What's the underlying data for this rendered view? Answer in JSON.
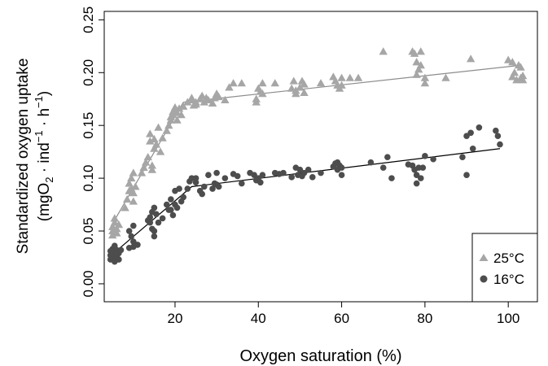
{
  "chart_data": {
    "type": "scatter",
    "xlabel": "Oxygen saturation (%)",
    "ylabel_line1": "Standardized oxygen uptake",
    "ylabel_line2": {
      "open": "(mgO",
      "sub": "2",
      "mid1": " · ind",
      "sup1": "−1",
      "mid2": " · h",
      "sup2": "−1",
      "close": ")"
    },
    "xlim": [
      3,
      107
    ],
    "ylim": [
      -0.017,
      0.258
    ],
    "x_ticks": [
      20,
      40,
      60,
      80,
      100
    ],
    "x_tick_labels": [
      "20",
      "40",
      "60",
      "80",
      "100"
    ],
    "y_ticks": [
      0.0,
      0.05,
      0.1,
      0.15,
      0.2,
      0.25
    ],
    "y_tick_labels": [
      "0.00",
      "0.05",
      "0.10",
      "0.15",
      "0.20",
      "0.25"
    ],
    "legend_position": "bottom-right",
    "series": [
      {
        "name": "25°C",
        "marker": "triangle",
        "color": "#a6a6a6",
        "points": [
          [
            5,
            0.046
          ],
          [
            5,
            0.05
          ],
          [
            5,
            0.054
          ],
          [
            5.5,
            0.058
          ],
          [
            5.5,
            0.062
          ],
          [
            6,
            0.052
          ],
          [
            6,
            0.048
          ],
          [
            6.5,
            0.056
          ],
          [
            8,
            0.072
          ],
          [
            8.5,
            0.08
          ],
          [
            9,
            0.088
          ],
          [
            9,
            0.095
          ],
          [
            9.5,
            0.1
          ],
          [
            9.5,
            0.09
          ],
          [
            10,
            0.078
          ],
          [
            10,
            0.086
          ],
          [
            10,
            0.105
          ],
          [
            10.5,
            0.092
          ],
          [
            12,
            0.105
          ],
          [
            12.5,
            0.11
          ],
          [
            13,
            0.115
          ],
          [
            13.5,
            0.12
          ],
          [
            14,
            0.135
          ],
          [
            14,
            0.142
          ],
          [
            14.5,
            0.108
          ],
          [
            14.5,
            0.112
          ],
          [
            15,
            0.128
          ],
          [
            15,
            0.137
          ],
          [
            15.5,
            0.132
          ],
          [
            16,
            0.148
          ],
          [
            16.5,
            0.125
          ],
          [
            17,
            0.138
          ],
          [
            18,
            0.145
          ],
          [
            18.5,
            0.15
          ],
          [
            19,
            0.155
          ],
          [
            19,
            0.158
          ],
          [
            19.5,
            0.16
          ],
          [
            19.5,
            0.163
          ],
          [
            20,
            0.165
          ],
          [
            20,
            0.167
          ],
          [
            20.5,
            0.162
          ],
          [
            20.5,
            0.155
          ],
          [
            21,
            0.166
          ],
          [
            21.5,
            0.16
          ],
          [
            22,
            0.168
          ],
          [
            23,
            0.172
          ],
          [
            24,
            0.174
          ],
          [
            24,
            0.176
          ],
          [
            24.5,
            0.169
          ],
          [
            25,
            0.172
          ],
          [
            25,
            0.17
          ],
          [
            26,
            0.175
          ],
          [
            26.5,
            0.178
          ],
          [
            27,
            0.172
          ],
          [
            27.5,
            0.176
          ],
          [
            28,
            0.174
          ],
          [
            29,
            0.171
          ],
          [
            29.5,
            0.176
          ],
          [
            30,
            0.18
          ],
          [
            30.5,
            0.177
          ],
          [
            32,
            0.174
          ],
          [
            33,
            0.186
          ],
          [
            34,
            0.19
          ],
          [
            36,
            0.19
          ],
          [
            39.5,
            0.175
          ],
          [
            39.5,
            0.172
          ],
          [
            40,
            0.185
          ],
          [
            40.5,
            0.182
          ],
          [
            41,
            0.19
          ],
          [
            41,
            0.18
          ],
          [
            44,
            0.19
          ],
          [
            48,
            0.185
          ],
          [
            48.5,
            0.192
          ],
          [
            49,
            0.18
          ],
          [
            49,
            0.183
          ],
          [
            50,
            0.186
          ],
          [
            50.5,
            0.192
          ],
          [
            51,
            0.189
          ],
          [
            51,
            0.181
          ],
          [
            55,
            0.19
          ],
          [
            58,
            0.196
          ],
          [
            58.5,
            0.192
          ],
          [
            59,
            0.188
          ],
          [
            59.5,
            0.185
          ],
          [
            60,
            0.195
          ],
          [
            60,
            0.188
          ],
          [
            62,
            0.195
          ],
          [
            64,
            0.195
          ],
          [
            70,
            0.22
          ],
          [
            77,
            0.22
          ],
          [
            77.5,
            0.218
          ],
          [
            78,
            0.21
          ],
          [
            78,
            0.198
          ],
          [
            78.5,
            0.203
          ],
          [
            79,
            0.22
          ],
          [
            79,
            0.207
          ],
          [
            80,
            0.195
          ],
          [
            80,
            0.19
          ],
          [
            85,
            0.195
          ],
          [
            91,
            0.213
          ],
          [
            100,
            0.212
          ],
          [
            101,
            0.21
          ],
          [
            101,
            0.196
          ],
          [
            101.5,
            0.2
          ],
          [
            102,
            0.193
          ],
          [
            102.5,
            0.207
          ],
          [
            103,
            0.205
          ],
          [
            103,
            0.195
          ],
          [
            103.5,
            0.197
          ],
          [
            103.5,
            0.193
          ]
        ],
        "fit": [
          [
            5,
            0.057
          ],
          [
            22,
            0.172
          ],
          [
            103,
            0.207
          ]
        ]
      },
      {
        "name": "16°C",
        "marker": "circle",
        "color": "#4d4d4d",
        "points": [
          [
            4.5,
            0.023
          ],
          [
            4.5,
            0.027
          ],
          [
            4.5,
            0.031
          ],
          [
            5,
            0.025
          ],
          [
            5,
            0.033
          ],
          [
            5,
            0.029
          ],
          [
            5.5,
            0.021
          ],
          [
            5.5,
            0.036
          ],
          [
            6,
            0.032
          ],
          [
            6,
            0.026
          ],
          [
            6.5,
            0.023
          ],
          [
            6.5,
            0.029
          ],
          [
            7,
            0.032
          ],
          [
            9,
            0.05
          ],
          [
            9,
            0.034
          ],
          [
            9.5,
            0.045
          ],
          [
            10,
            0.055
          ],
          [
            10,
            0.04
          ],
          [
            10,
            0.035
          ],
          [
            11,
            0.037
          ],
          [
            13.5,
            0.06
          ],
          [
            14,
            0.063
          ],
          [
            14,
            0.058
          ],
          [
            14.5,
            0.068
          ],
          [
            14.5,
            0.052
          ],
          [
            15,
            0.045
          ],
          [
            15,
            0.05
          ],
          [
            15,
            0.072
          ],
          [
            15.5,
            0.066
          ],
          [
            16,
            0.058
          ],
          [
            17,
            0.062
          ],
          [
            18,
            0.075
          ],
          [
            18.5,
            0.07
          ],
          [
            19,
            0.08
          ],
          [
            19,
            0.07
          ],
          [
            19.5,
            0.065
          ],
          [
            20,
            0.088
          ],
          [
            20,
            0.075
          ],
          [
            20.5,
            0.072
          ],
          [
            21,
            0.09
          ],
          [
            21.5,
            0.078
          ],
          [
            22,
            0.082
          ],
          [
            23,
            0.09
          ],
          [
            23.5,
            0.097
          ],
          [
            24,
            0.1
          ],
          [
            25,
            0.1
          ],
          [
            25,
            0.096
          ],
          [
            26,
            0.088
          ],
          [
            26.5,
            0.085
          ],
          [
            27,
            0.092
          ],
          [
            28,
            0.103
          ],
          [
            29,
            0.09
          ],
          [
            29.5,
            0.095
          ],
          [
            30,
            0.105
          ],
          [
            30,
            0.094
          ],
          [
            30.5,
            0.092
          ],
          [
            32,
            0.1
          ],
          [
            34,
            0.104
          ],
          [
            35,
            0.102
          ],
          [
            36,
            0.095
          ],
          [
            38,
            0.105
          ],
          [
            39,
            0.103
          ],
          [
            39.5,
            0.098
          ],
          [
            40,
            0.1
          ],
          [
            40.5,
            0.096
          ],
          [
            41,
            0.103
          ],
          [
            44,
            0.105
          ],
          [
            45,
            0.104
          ],
          [
            46,
            0.105
          ],
          [
            48,
            0.101
          ],
          [
            49,
            0.11
          ],
          [
            49.5,
            0.103
          ],
          [
            50,
            0.108
          ],
          [
            50.5,
            0.102
          ],
          [
            51,
            0.105
          ],
          [
            52,
            0.108
          ],
          [
            53,
            0.101
          ],
          [
            55,
            0.105
          ],
          [
            58,
            0.111
          ],
          [
            58.5,
            0.114
          ],
          [
            59,
            0.108
          ],
          [
            59,
            0.115
          ],
          [
            59.5,
            0.112
          ],
          [
            60,
            0.11
          ],
          [
            60,
            0.103
          ],
          [
            67,
            0.115
          ],
          [
            70,
            0.11
          ],
          [
            71,
            0.12
          ],
          [
            72,
            0.1
          ],
          [
            76,
            0.113
          ],
          [
            77,
            0.112
          ],
          [
            77.5,
            0.108
          ],
          [
            78,
            0.103
          ],
          [
            78,
            0.095
          ],
          [
            78.5,
            0.11
          ],
          [
            79,
            0.1
          ],
          [
            79.5,
            0.11
          ],
          [
            80,
            0.121
          ],
          [
            82,
            0.118
          ],
          [
            89,
            0.12
          ],
          [
            90,
            0.103
          ],
          [
            90,
            0.14
          ],
          [
            91,
            0.143
          ],
          [
            91.5,
            0.128
          ],
          [
            93,
            0.148
          ],
          [
            97,
            0.145
          ],
          [
            97.5,
            0.14
          ],
          [
            98,
            0.132
          ]
        ],
        "fit": [
          [
            5,
            0.028
          ],
          [
            24,
            0.092
          ],
          [
            98,
            0.128
          ]
        ]
      }
    ]
  }
}
